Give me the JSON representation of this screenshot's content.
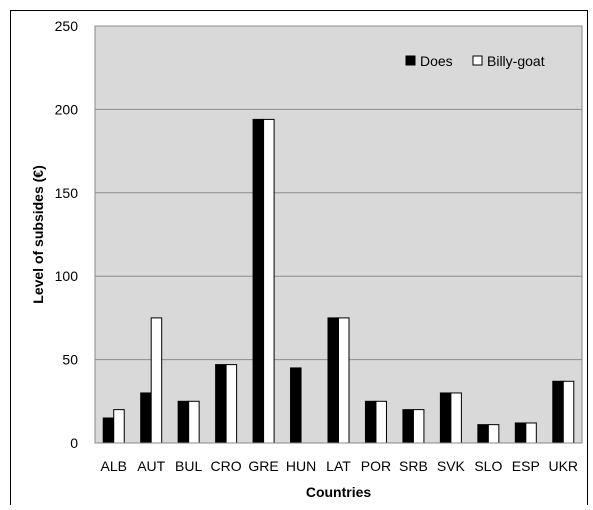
{
  "chart_data": {
    "type": "bar",
    "xlabel": "Countries",
    "ylabel": "Level of subsides (€)",
    "categories": [
      "ALB",
      "AUT",
      "BUL",
      "CRO",
      "GRE",
      "HUN",
      "LAT",
      "POR",
      "SRB",
      "SVK",
      "SLO",
      "ESP",
      "UKR"
    ],
    "series": [
      {
        "name": "Does",
        "color": "#000000",
        "values": [
          15,
          30,
          25,
          47,
          194,
          45,
          75,
          25,
          20,
          30,
          11,
          12,
          37
        ]
      },
      {
        "name": "Billy-goat",
        "color": "#ffffff",
        "values": [
          20,
          75,
          25,
          47,
          194,
          null,
          75,
          25,
          20,
          30,
          11,
          12,
          37
        ]
      }
    ],
    "ylim": [
      0,
      250
    ],
    "yticks": [
      0,
      50,
      100,
      150,
      200,
      250
    ],
    "grid": true,
    "legend_position": "top-right",
    "plot_background": "#d9d9d9"
  }
}
